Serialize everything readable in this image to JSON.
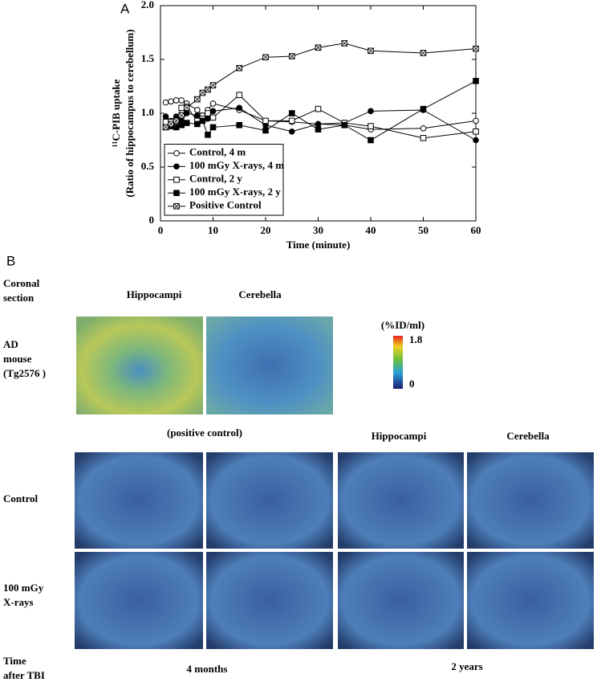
{
  "chart_data": {
    "type": "line",
    "panel_label": "A",
    "x_label": "Time (minute)",
    "y_label": [
      "¹¹C-PIB uptake",
      "(Ratio of hippocampus  to cerebellum)"
    ],
    "x": [
      1,
      2,
      3,
      4,
      5,
      7,
      8,
      9,
      10,
      15,
      20,
      25,
      30,
      35,
      40,
      50,
      60
    ],
    "series": [
      {
        "name": "Control, 4 m",
        "color": "#000000",
        "marker": "circle-open",
        "values": [
          1.1,
          1.11,
          1.12,
          1.12,
          1.09,
          1.03,
          0.98,
          1.03,
          1.09,
          1.03,
          0.93,
          0.92,
          0.9,
          0.89,
          0.85,
          0.86,
          0.93
        ]
      },
      {
        "name": "100 mGy X-rays, 4 m",
        "color": "#000000",
        "marker": "circle-filled",
        "values": [
          0.97,
          0.93,
          0.97,
          0.93,
          1.0,
          0.98,
          0.93,
          0.95,
          1.02,
          1.05,
          0.89,
          0.83,
          0.9,
          0.91,
          1.02,
          1.03,
          0.75
        ]
      },
      {
        "name": "Control, 2 y",
        "color": "#000000",
        "marker": "square-open",
        "values": [
          0.92,
          0.92,
          0.93,
          1.05,
          1.06,
          0.93,
          0.95,
          1.0,
          0.96,
          1.17,
          0.93,
          0.93,
          1.04,
          0.91,
          0.88,
          0.77,
          0.83
        ]
      },
      {
        "name": "100 mGy X-rays, 2 y",
        "color": "#000000",
        "marker": "square-filled",
        "values": [
          0.87,
          0.88,
          0.87,
          0.89,
          0.91,
          0.9,
          0.93,
          0.8,
          0.87,
          0.89,
          0.84,
          1.0,
          0.85,
          0.89,
          0.75,
          1.04,
          1.3
        ]
      },
      {
        "name": "Positive Control",
        "color": "#000000",
        "marker": "square-cross",
        "values": [
          0.87,
          0.9,
          0.93,
          0.98,
          1.05,
          1.13,
          1.19,
          1.22,
          1.26,
          1.42,
          1.52,
          1.53,
          1.61,
          1.65,
          1.58,
          1.56,
          1.6
        ]
      }
    ],
    "xlim": [
      0,
      60
    ],
    "xticks": [
      0,
      10,
      20,
      30,
      40,
      50,
      60
    ],
    "ylim": [
      0,
      2.0
    ],
    "yticks": [
      0,
      0.5,
      {
        "value": 1.0,
        "label": "1.0"
      },
      1.5,
      {
        "value": 2.0,
        "label": "2.0"
      }
    ],
    "grid": false,
    "legend": "lower left"
  },
  "panel_b": {
    "label": "B",
    "header": [
      "Coronal",
      "section"
    ],
    "columns_top": [
      "Hippocampi",
      "Cerebella"
    ],
    "ad_label": [
      "AD",
      "mouse",
      "(Tg2576 )"
    ],
    "colorbar": {
      "unit": "(%ID/ml)",
      "max": "1.8",
      "min": "0"
    },
    "caption": "(positive control)",
    "columns_bottom": [
      "Hippocampi",
      "Cerebella"
    ],
    "rows": [
      [
        "Control"
      ],
      [
        "100 mGy",
        "X-rays"
      ]
    ],
    "time_label": [
      "Time",
      "after TBI"
    ],
    "times": [
      "4 months",
      "2 years"
    ]
  }
}
